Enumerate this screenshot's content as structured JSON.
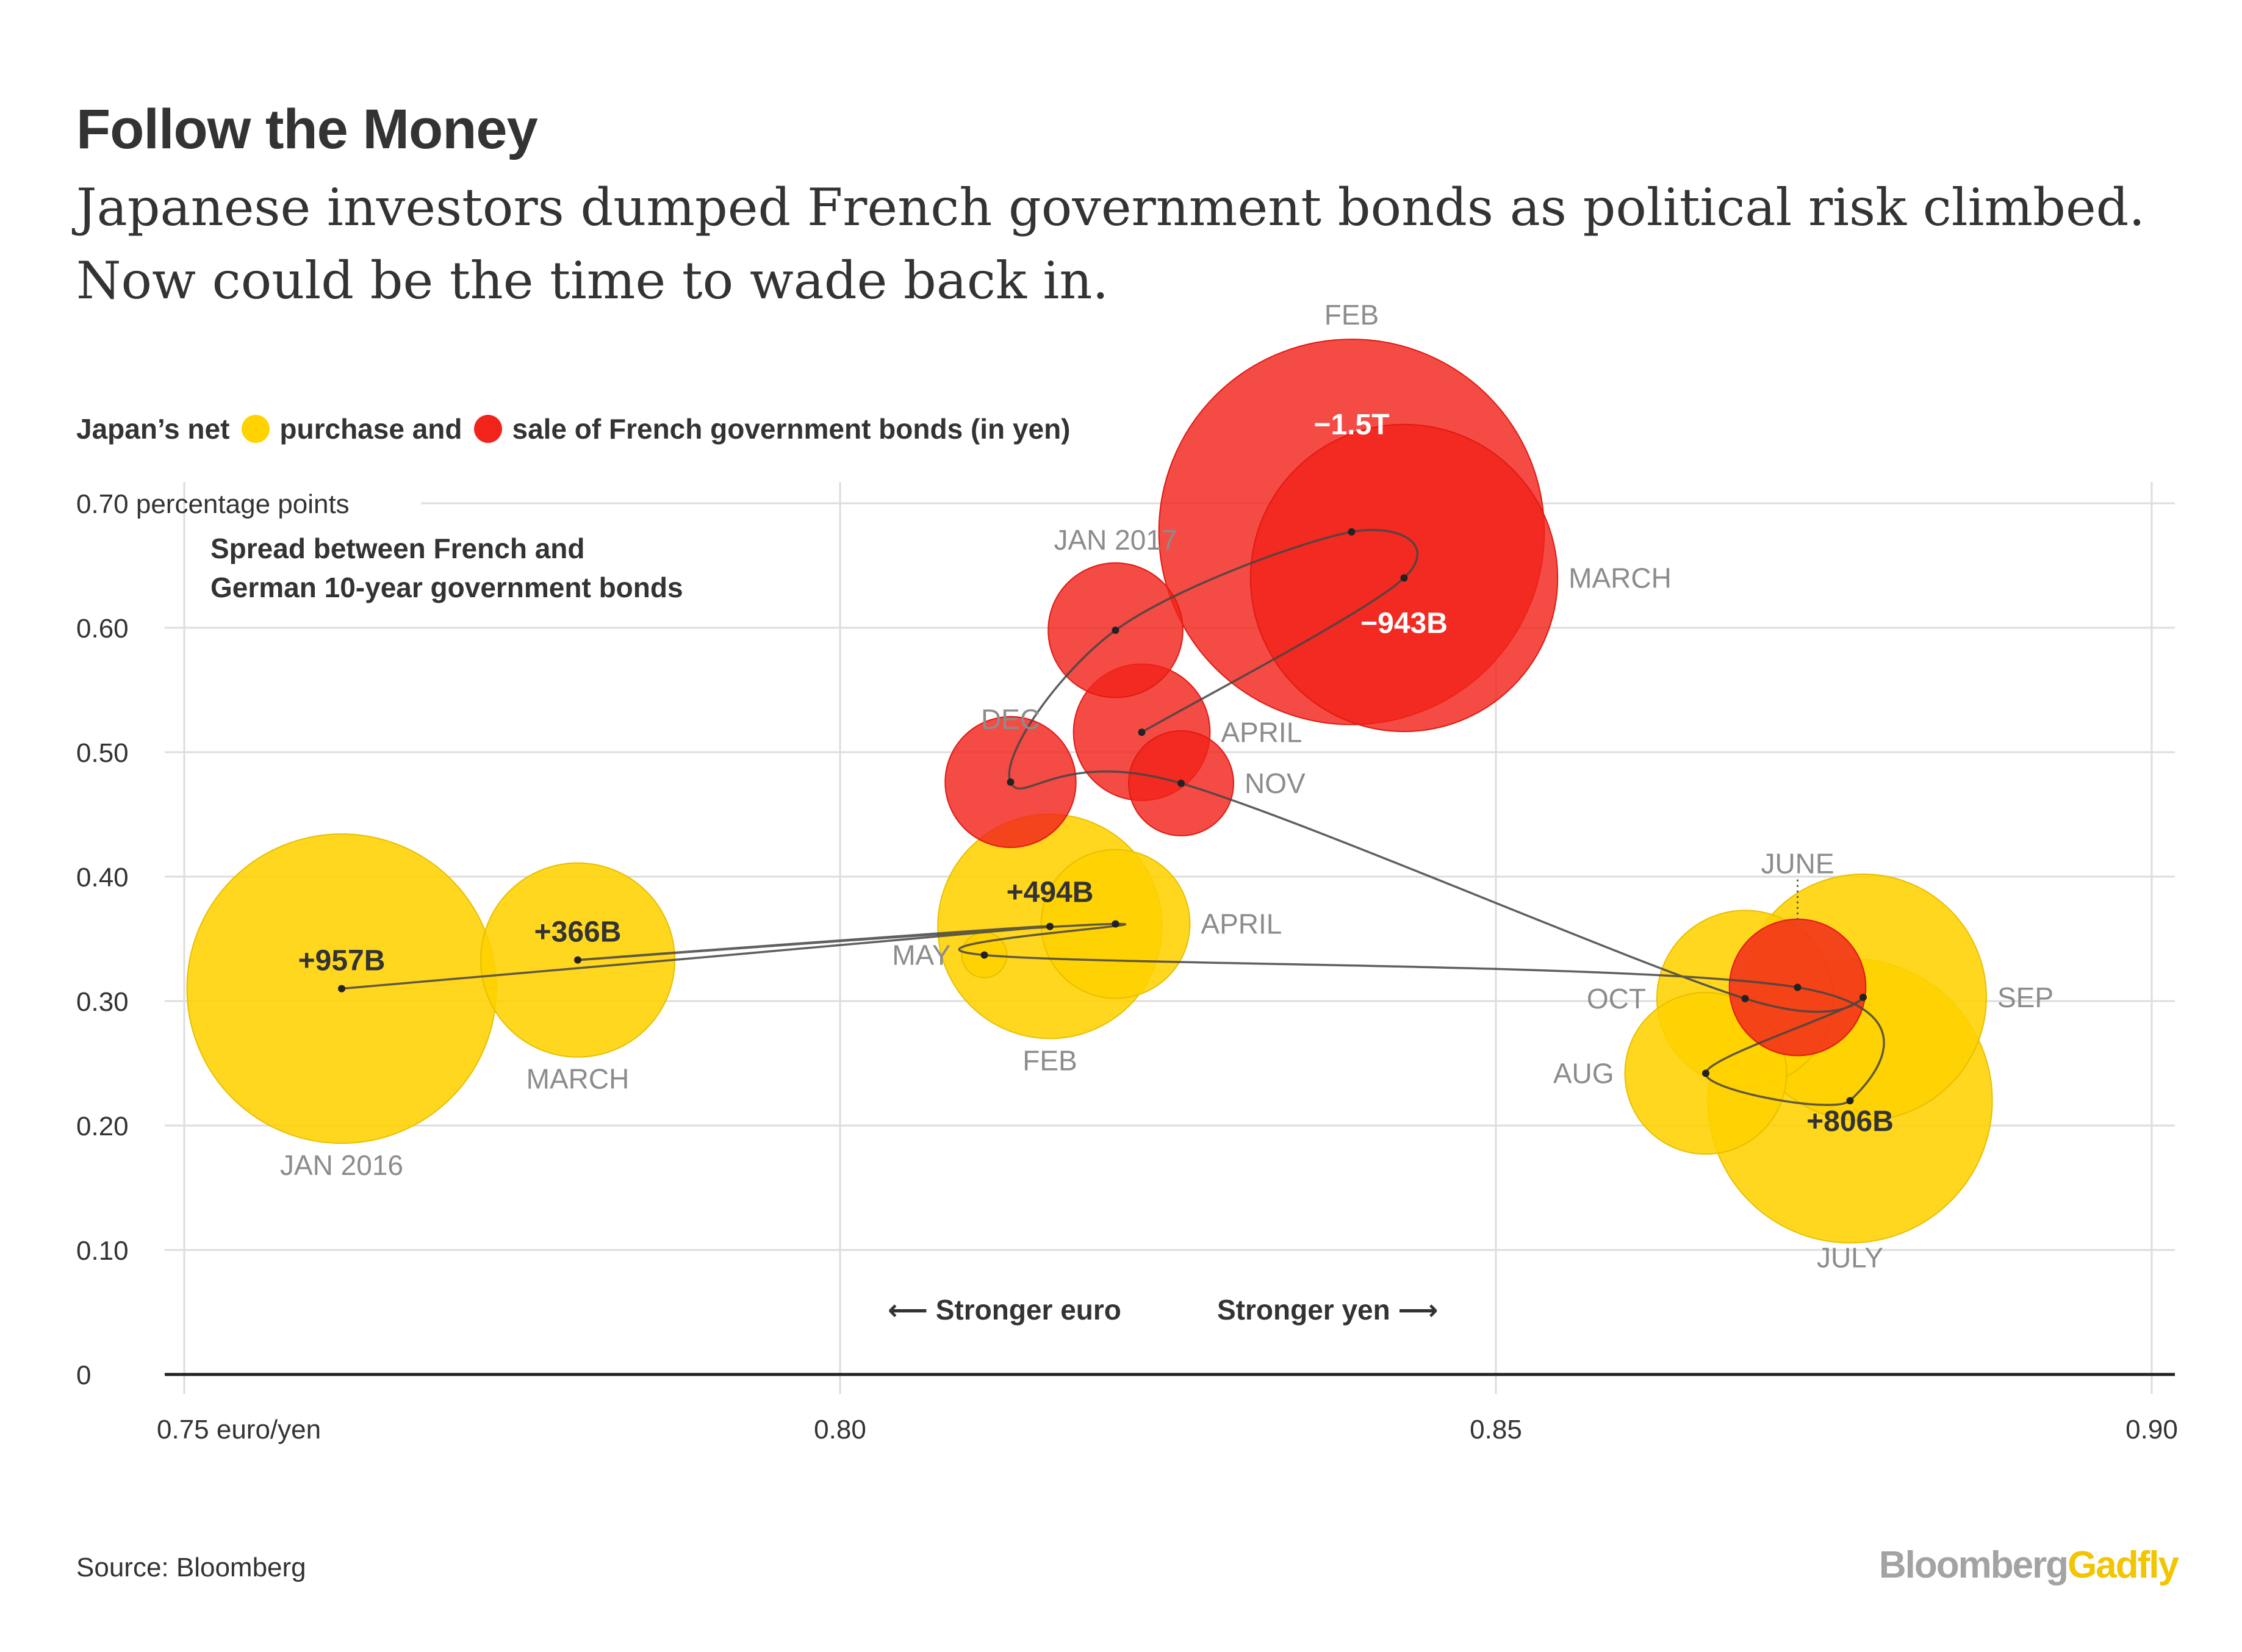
{
  "header": {
    "title": "Follow the Money",
    "subtitle": "Japanese investors dumped French government bonds as political risk climbed. Now could be the time to wade back in."
  },
  "legend": {
    "prefix": "Japan’s net",
    "purchase_label": "purchase and",
    "sale_label": "sale of French government bonds (in yen)"
  },
  "footer": {
    "source": "Source: Bloomberg",
    "logo_part1": "Bloomberg",
    "logo_part2": "Gadfly"
  },
  "colors": {
    "purchase": "#ffd200",
    "sale": "#f2231b",
    "text": "#333333",
    "label_gray": "#8c8c8c",
    "grid": "#dddddd"
  },
  "chart_data": {
    "type": "scatter",
    "subtype": "bubble",
    "xlabel": "euro/yen",
    "ylabel": "percentage points",
    "y_axis_title": "Spread between French and German 10-year government bonds",
    "xlim": [
      0.75,
      0.9
    ],
    "ylim": [
      0,
      0.7
    ],
    "x_ticks": [
      {
        "value": 0.75,
        "label": "0.75 euro/yen"
      },
      {
        "value": 0.8,
        "label": "0.80"
      },
      {
        "value": 0.85,
        "label": "0.85"
      },
      {
        "value": 0.9,
        "label": "0.90"
      }
    ],
    "y_ticks": [
      {
        "value": 0,
        "label": "0"
      },
      {
        "value": 0.1,
        "label": "0.10"
      },
      {
        "value": 0.2,
        "label": "0.20"
      },
      {
        "value": 0.3,
        "label": "0.30"
      },
      {
        "value": 0.4,
        "label": "0.40"
      },
      {
        "value": 0.5,
        "label": "0.50"
      },
      {
        "value": 0.6,
        "label": "0.60"
      },
      {
        "value": 0.7,
        "label": "0.70 percentage points"
      }
    ],
    "grid": true,
    "direction_left": "Stronger euro",
    "direction_right": "Stronger yen",
    "points": [
      {
        "month": "JAN 2016",
        "x": 0.762,
        "y": 0.31,
        "net_yen_billions": 957,
        "type": "purchase",
        "value_label": "+957B",
        "label_pos": "bottom"
      },
      {
        "month": "FEB",
        "x": 0.816,
        "y": 0.36,
        "net_yen_billions": 494,
        "type": "purchase",
        "value_label": "+494B",
        "label_pos": "bottom"
      },
      {
        "month": "MARCH",
        "x": 0.78,
        "y": 0.333,
        "net_yen_billions": 366,
        "type": "purchase",
        "value_label": "+366B",
        "label_pos": "bottom"
      },
      {
        "month": "APRIL",
        "x": 0.821,
        "y": 0.362,
        "net_yen_billions": 210,
        "type": "purchase",
        "value_label": "",
        "label_pos": "right"
      },
      {
        "month": "MAY",
        "x": 0.811,
        "y": 0.337,
        "net_yen_billions": 15,
        "type": "purchase",
        "value_label": "",
        "label_pos": "left"
      },
      {
        "month": "JUNE",
        "x": 0.873,
        "y": 0.311,
        "net_yen_billions": -175,
        "type": "sale",
        "value_label": "",
        "label_pos": "top"
      },
      {
        "month": "JULY",
        "x": 0.877,
        "y": 0.22,
        "net_yen_billions": 806,
        "type": "purchase",
        "value_label": "+806B",
        "label_pos": "bottom"
      },
      {
        "month": "AUG",
        "x": 0.866,
        "y": 0.242,
        "net_yen_billions": 250,
        "type": "purchase",
        "value_label": "",
        "label_pos": "left"
      },
      {
        "month": "SEP",
        "x": 0.878,
        "y": 0.303,
        "net_yen_billions": 600,
        "type": "purchase",
        "value_label": "",
        "label_pos": "right"
      },
      {
        "month": "OCT",
        "x": 0.869,
        "y": 0.302,
        "net_yen_billions": 300,
        "type": "purchase",
        "value_label": "",
        "label_pos": "left"
      },
      {
        "month": "NOV",
        "x": 0.826,
        "y": 0.475,
        "net_yen_billions": -100,
        "type": "sale",
        "value_label": "",
        "label_pos": "right"
      },
      {
        "month": "DEC",
        "x": 0.813,
        "y": 0.476,
        "net_yen_billions": -160,
        "type": "sale",
        "value_label": "",
        "label_pos": "top-left"
      },
      {
        "month": "JAN 2017",
        "x": 0.821,
        "y": 0.598,
        "net_yen_billions": -170,
        "type": "sale",
        "value_label": "",
        "label_pos": "top"
      },
      {
        "month": "FEB",
        "x": 0.839,
        "y": 0.677,
        "net_yen_billions": -1500,
        "type": "sale",
        "value_label": "−1.5T",
        "label_pos": "top"
      },
      {
        "month": "MARCH",
        "x": 0.843,
        "y": 0.64,
        "net_yen_billions": -943,
        "type": "sale",
        "value_label": "−943B",
        "label_pos": "right"
      },
      {
        "month": "APRIL",
        "x": 0.823,
        "y": 0.516,
        "net_yen_billions": -175,
        "type": "sale",
        "value_label": "",
        "label_pos": "right"
      }
    ]
  }
}
